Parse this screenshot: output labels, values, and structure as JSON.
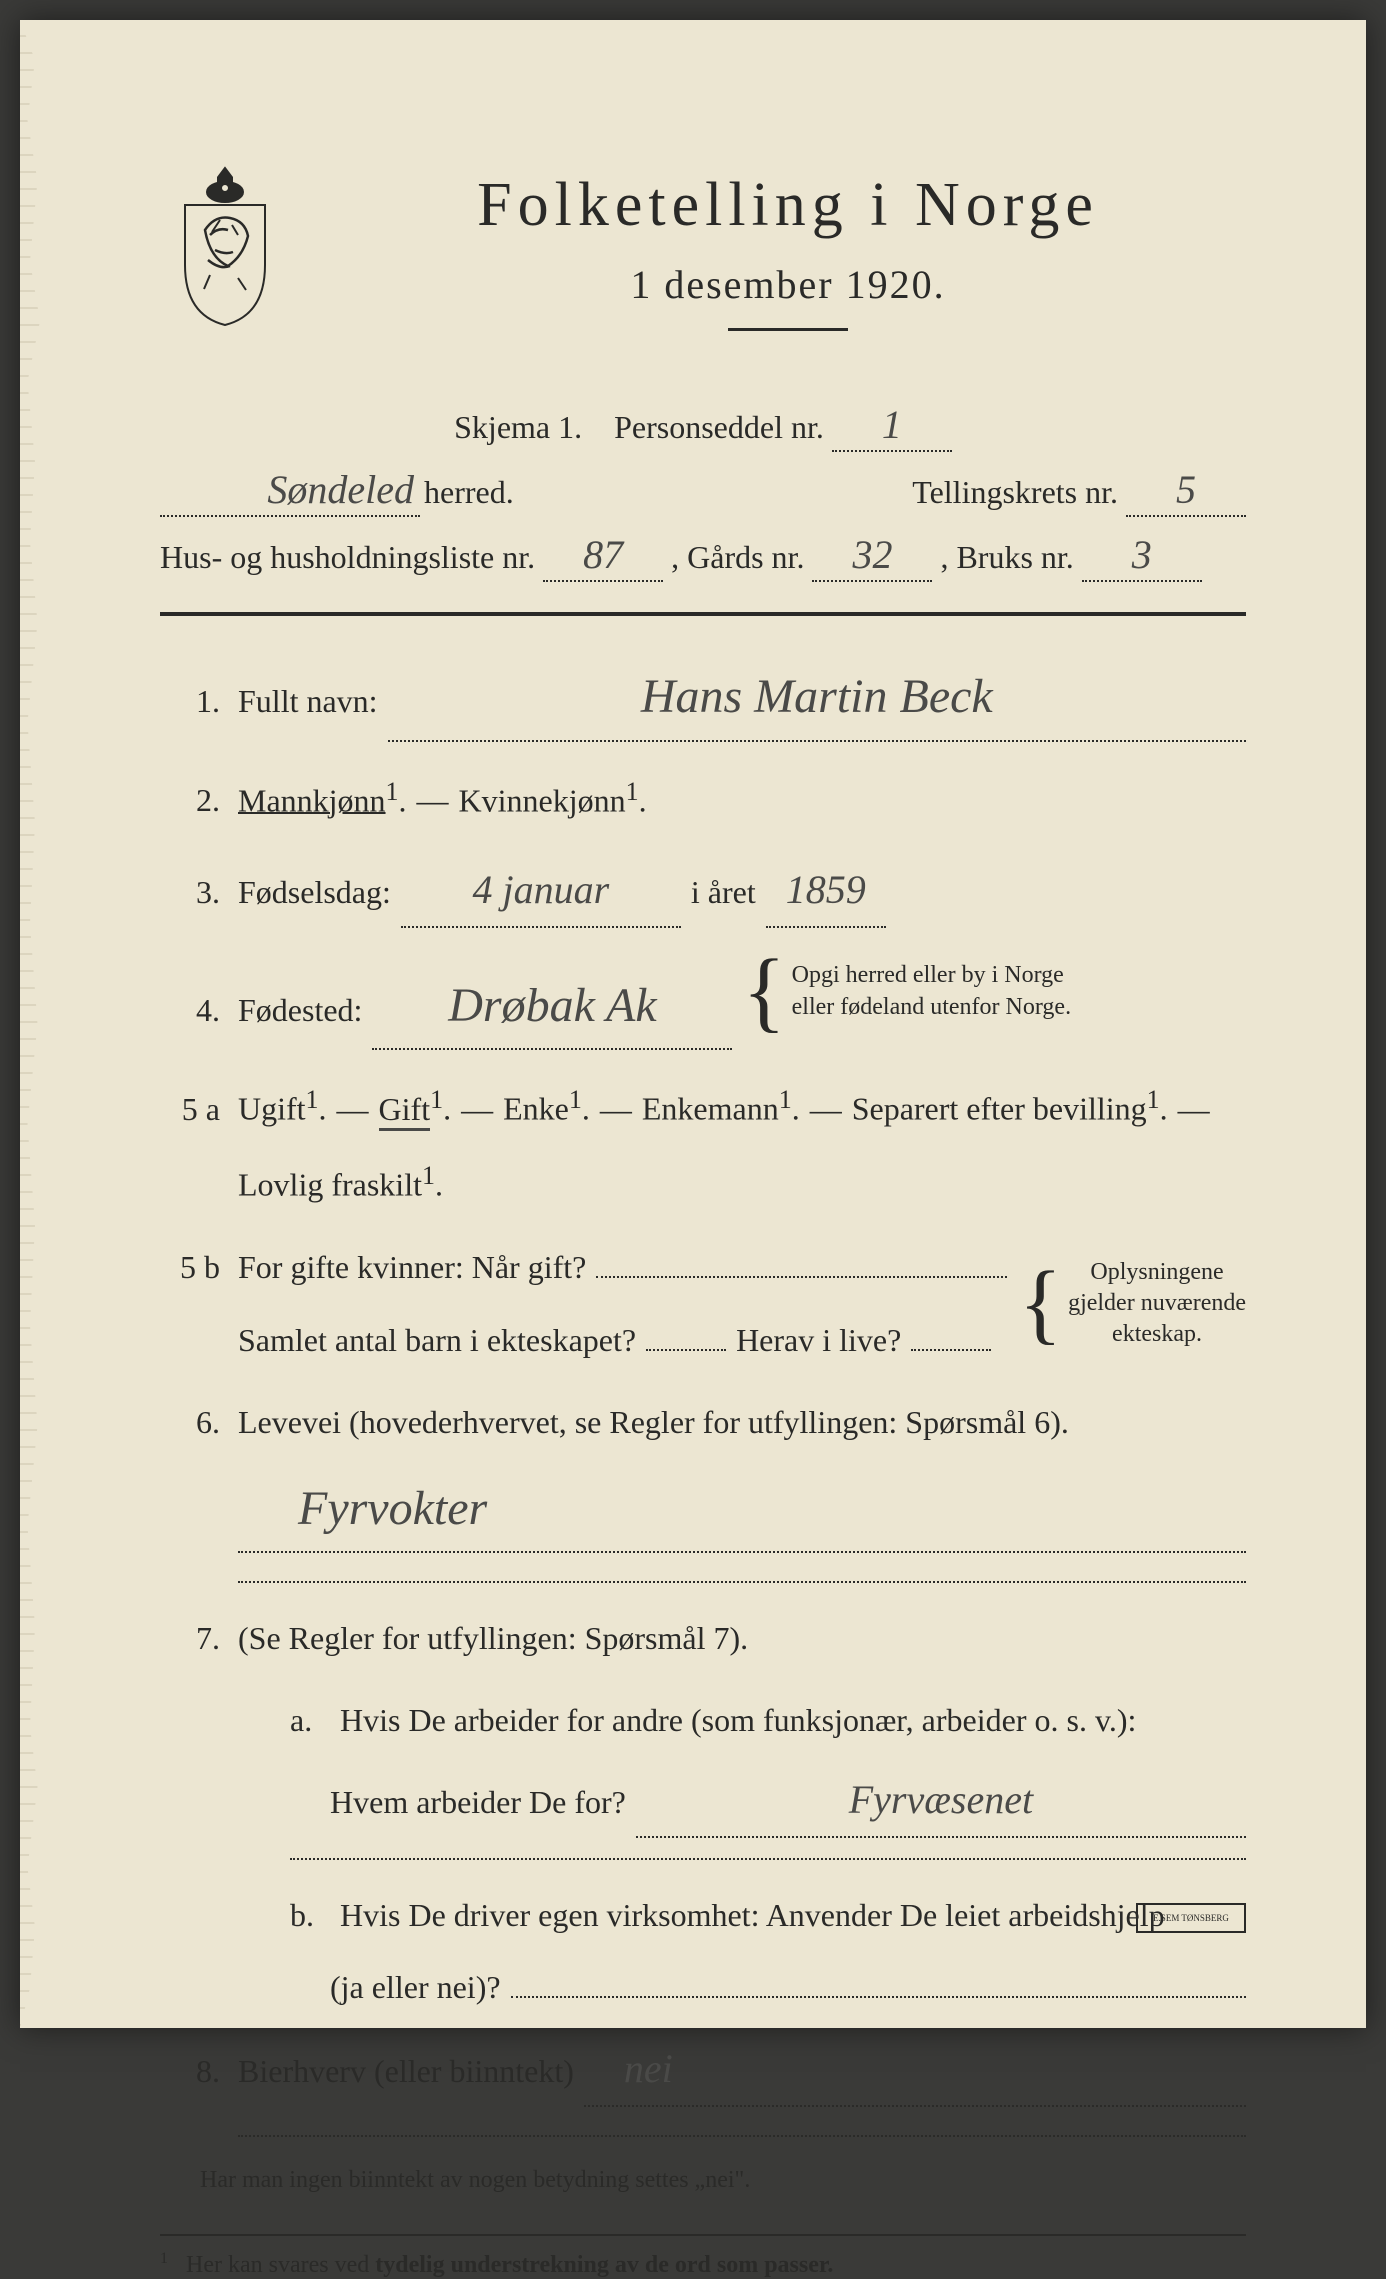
{
  "background_color": "#ece6d2",
  "ink_color": "#2a2a28",
  "handwriting_color": "#4a4a48",
  "header": {
    "title": "Folketelling  i  Norge",
    "subtitle": "1 desember 1920."
  },
  "meta": {
    "skjema_prefix": "Skjema 1.",
    "personseddel_label": "Personseddel nr.",
    "personseddel_nr": "1",
    "herred_value": "Søndeled",
    "herred_suffix": "herred.",
    "tellingskrets_label": "Tellingskrets nr.",
    "tellingskrets_nr": "5",
    "hus_label": "Hus- og husholdningsliste nr.",
    "hus_nr": "87",
    "gards_label": ", Gårds nr.",
    "gards_nr": "32",
    "bruks_label": ", Bruks nr.",
    "bruks_nr": "3"
  },
  "q1": {
    "num": "1.",
    "label": "Fullt navn:",
    "value": "Hans Martin Beck"
  },
  "q2": {
    "num": "2.",
    "mann": "Mannkjønn",
    "sep": " — ",
    "kvinne": "Kvinnekjønn",
    "sup": "1",
    "dot": "."
  },
  "q3": {
    "num": "3.",
    "label": "Fødselsdag:",
    "day_month": "4 januar",
    "mid": "i året",
    "year": "1859"
  },
  "q4": {
    "num": "4.",
    "label": "Fødested:",
    "value": "Drøbak Ak",
    "note1": "Opgi herred eller by i Norge",
    "note2": "eller fødeland utenfor Norge."
  },
  "q5a": {
    "num": "5 a",
    "opts": [
      "Ugift",
      "Gift",
      "Enke",
      "Enkemann",
      "Separert efter bevilling"
    ],
    "line2": "Lovlig fraskilt",
    "selected_index": 1
  },
  "q5b": {
    "num": "5 b",
    "l1a": "For gifte kvinner:  Når gift?",
    "l2a": "Samlet antal barn i ekteskapet?",
    "l2b": "Herav i live?",
    "note1": "Oplysningene",
    "note2": "gjelder nuværende",
    "note3": "ekteskap."
  },
  "q6": {
    "num": "6.",
    "label": "Levevei (hovederhvervet, se Regler for utfyllingen:  Spørsmål 6).",
    "value": "Fyrvokter"
  },
  "q7": {
    "num": "7.",
    "intro": "(Se Regler for utfyllingen:  Spørsmål 7).",
    "a_letter": "a.",
    "a1": "Hvis De arbeider for andre (som funksjonær, arbeider o. s. v.):",
    "a2": "Hvem arbeider De for?",
    "a_value": "Fyrvæsenet",
    "b_letter": "b.",
    "b1": "Hvis De driver egen virksomhet:  Anvender De leiet arbeidshjelp",
    "b2": "(ja eller nei)?"
  },
  "q8": {
    "num": "8.",
    "label": "Bierhverv (eller biinntekt)",
    "value": "nei"
  },
  "footnotes": {
    "f1": "Har man ingen biinntekt av nogen betydning settes „nei\".",
    "f2_pre": "Her kan svares ved ",
    "f2_bold": "tydelig understrekning av de ord som passer.",
    "sup": "1"
  },
  "printer": "E.SEM TØNSBERG"
}
